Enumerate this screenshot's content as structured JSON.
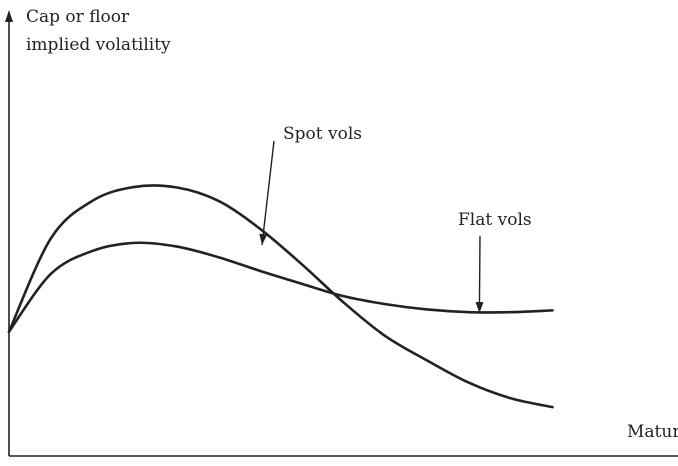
{
  "chart_data": {
    "type": "line",
    "ylabel": [
      "Cap or floor",
      "implied volatility"
    ],
    "xlabel": "Matur",
    "series": [
      {
        "name": "Spot vols",
        "x": [
          0,
          1,
          2,
          3,
          4,
          5,
          6,
          7,
          8,
          9,
          10,
          11,
          12,
          13
        ],
        "y": [
          2.8,
          4.9,
          5.75,
          6.06,
          6.05,
          5.75,
          5.12,
          4.32,
          3.46,
          2.7,
          2.15,
          1.65,
          1.3,
          1.1
        ]
      },
      {
        "name": "Flat vols",
        "x": [
          0,
          1,
          2,
          3,
          4,
          5,
          6,
          7,
          8,
          9,
          10,
          11,
          12,
          13
        ],
        "y": [
          2.8,
          4.1,
          4.62,
          4.8,
          4.72,
          4.48,
          4.17,
          3.88,
          3.6,
          3.42,
          3.3,
          3.24,
          3.24,
          3.28
        ]
      }
    ],
    "annotations": [
      {
        "label": "Spot vols",
        "series": "Spot vols",
        "arrow_to": {
          "x": 6.05,
          "y": 4.75
        }
      },
      {
        "label": "Flat vols",
        "series": "Flat vols",
        "arrow_to": {
          "x": 11.25,
          "y": 3.22
        }
      }
    ],
    "xlim": [
      0,
      16
    ],
    "ylim": [
      0,
      10
    ],
    "grid": false,
    "ticks": false,
    "colors": {
      "line": "#222222",
      "axis": "#222222",
      "background": "#ffffff"
    }
  }
}
